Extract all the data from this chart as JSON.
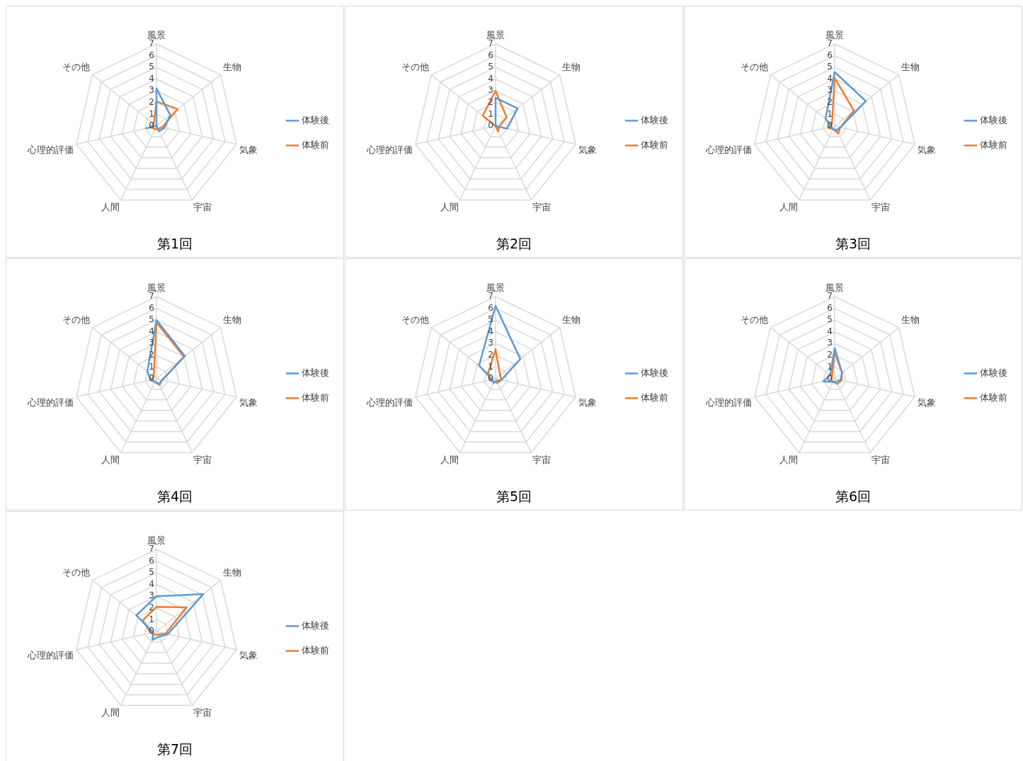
{
  "chart_data": [
    {
      "type": "radar",
      "title": "第1回",
      "categories": [
        "風景",
        "生物",
        "気象",
        "宇宙",
        "人間",
        "心理的評価",
        "その他"
      ],
      "ylim": [
        0,
        7
      ],
      "yticks": [
        0,
        1,
        2,
        3,
        4,
        5,
        6,
        7
      ],
      "grid": true,
      "legend": "right",
      "marker": "none",
      "series": [
        {
          "name": "体験後",
          "color": "#5b9bd5",
          "values": [
            3.2,
            1.5,
            0.7,
            0.5,
            0,
            0.9,
            0
          ]
        },
        {
          "name": "体験前",
          "color": "#ed7d31",
          "values": [
            2.1,
            2.3,
            0.5,
            0.3,
            0.3,
            0.5,
            0.3
          ]
        }
      ]
    },
    {
      "type": "radar",
      "title": "第2回",
      "categories": [
        "風景",
        "生物",
        "気象",
        "宇宙",
        "人間",
        "心理的評価",
        "その他"
      ],
      "ylim": [
        0,
        7
      ],
      "yticks": [
        0,
        1,
        2,
        3,
        4,
        5,
        6,
        7
      ],
      "grid": true,
      "legend": "right",
      "marker": "none",
      "series": [
        {
          "name": "体験後",
          "color": "#5b9bd5",
          "values": [
            2.4,
            2.4,
            1,
            0,
            0,
            0,
            0
          ]
        },
        {
          "name": "体験前",
          "color": "#ed7d31",
          "values": [
            3,
            1.2,
            0.3,
            0.5,
            0,
            0,
            1.4
          ]
        }
      ]
    },
    {
      "type": "radar",
      "title": "第3回",
      "categories": [
        "風景",
        "生物",
        "気象",
        "宇宙",
        "人間",
        "心理的評価",
        "その他"
      ],
      "ylim": [
        0,
        7
      ],
      "yticks": [
        0,
        1,
        2,
        3,
        4,
        5,
        6,
        7
      ],
      "grid": true,
      "legend": "right",
      "marker": "none",
      "series": [
        {
          "name": "体験後",
          "color": "#5b9bd5",
          "values": [
            4.6,
            3.4,
            0.5,
            0.4,
            0.3,
            0.3,
            1
          ]
        },
        {
          "name": "体験前",
          "color": "#ed7d31",
          "values": [
            4.1,
            2.1,
            0.5,
            0.7,
            0.3,
            0.6,
            0.3
          ]
        }
      ]
    },
    {
      "type": "radar",
      "title": "第4回",
      "categories": [
        "風景",
        "生物",
        "気象",
        "宇宙",
        "人間",
        "心理的評価",
        "その他"
      ],
      "ylim": [
        0,
        7
      ],
      "yticks": [
        0,
        1,
        2,
        3,
        4,
        5,
        6,
        7
      ],
      "grid": true,
      "legend": "right",
      "marker": "none",
      "series": [
        {
          "name": "体験後",
          "color": "#5b9bd5",
          "values": [
            5,
            3.1,
            0.5,
            0.5,
            0.3,
            0.5,
            1
          ]
        },
        {
          "name": "体験前",
          "color": "#ed7d31",
          "values": [
            4.8,
            3,
            0.5,
            0.6,
            0.3,
            0.5,
            0.3
          ]
        }
      ]
    },
    {
      "type": "radar",
      "title": "第5回",
      "categories": [
        "風景",
        "生物",
        "気象",
        "宇宙",
        "人間",
        "心理的評価",
        "その他"
      ],
      "ylim": [
        0,
        7
      ],
      "yticks": [
        0,
        1,
        2,
        3,
        4,
        5,
        6,
        7
      ],
      "grid": true,
      "legend": "right",
      "marker": "none",
      "series": [
        {
          "name": "体験後",
          "color": "#5b9bd5",
          "values": [
            6.2,
            2.7,
            0.5,
            0.2,
            0.4,
            0.3,
            1.8
          ]
        },
        {
          "name": "体験前",
          "color": "#ed7d31",
          "values": [
            2.5,
            0.5,
            0.5,
            0.4,
            0.3,
            0.5,
            0.8
          ]
        }
      ]
    },
    {
      "type": "radar",
      "title": "第6回",
      "categories": [
        "風景",
        "生物",
        "気象",
        "宇宙",
        "人間",
        "心理的評価",
        "その他"
      ],
      "ylim": [
        0,
        7
      ],
      "yticks": [
        0,
        1,
        2,
        3,
        4,
        5,
        6,
        7
      ],
      "grid": true,
      "legend": "right",
      "marker": "none",
      "series": [
        {
          "name": "体験後",
          "color": "#5b9bd5",
          "values": [
            2.6,
            0.8,
            0.5,
            0.3,
            0.3,
            1,
            0.5
          ]
        },
        {
          "name": "体験前",
          "color": "#ed7d31",
          "values": [
            2.3,
            0.8,
            0.6,
            0.5,
            0.3,
            0.3,
            0.3
          ]
        }
      ]
    },
    {
      "type": "radar",
      "title": "第7回",
      "categories": [
        "風景",
        "生物",
        "気象",
        "宇宙",
        "人間",
        "心理的評価",
        "その他"
      ],
      "ylim": [
        0,
        7
      ],
      "yticks": [
        0,
        1,
        2,
        3,
        4,
        5,
        6,
        7
      ],
      "grid": true,
      "legend": "right",
      "marker": "none",
      "series": [
        {
          "name": "体験後",
          "color": "#5b9bd5",
          "values": [
            3,
            5.1,
            1,
            0.5,
            0.8,
            0.3,
            2.2
          ]
        },
        {
          "name": "体験前",
          "color": "#ed7d31",
          "values": [
            2.1,
            3.3,
            0.8,
            0.3,
            0.3,
            0.5,
            1.5
          ]
        }
      ]
    }
  ]
}
